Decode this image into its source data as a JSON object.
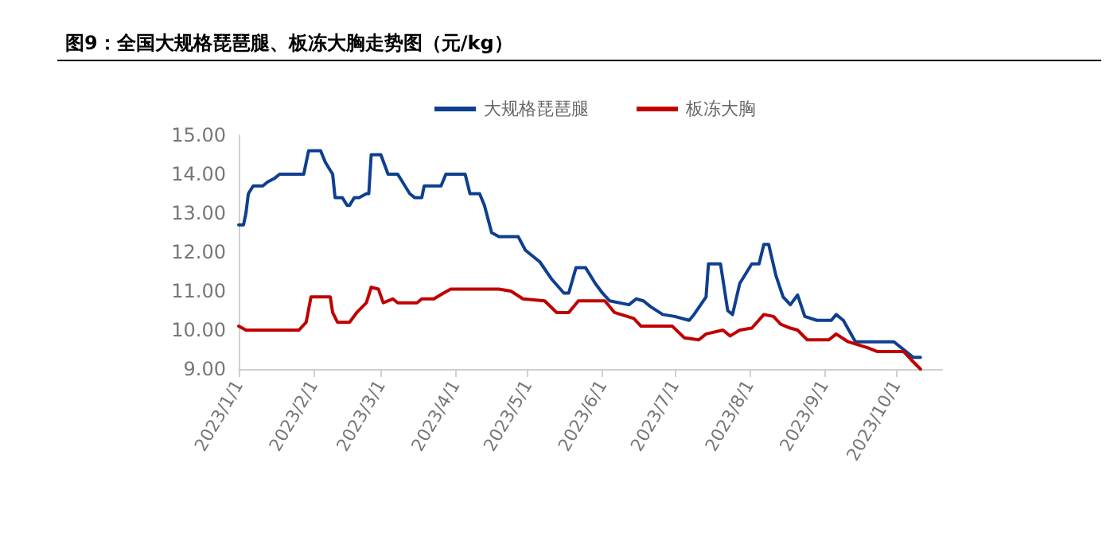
{
  "chart_data": {
    "type": "line",
    "title": "图9：全国大规格琵琶腿、板冻大胸走势图（元/kg）",
    "xlim": [
      "2023-01-01",
      "2023-10-20"
    ],
    "xticks": [
      {
        "value": "2023-01-01",
        "label": "2023/1/1"
      },
      {
        "value": "2023-02-01",
        "label": "2023/2/1"
      },
      {
        "value": "2023-03-01",
        "label": "2023/3/1"
      },
      {
        "value": "2023-04-01",
        "label": "2023/4/1"
      },
      {
        "value": "2023-05-01",
        "label": "2023/5/1"
      },
      {
        "value": "2023-06-01",
        "label": "2023/6/1"
      },
      {
        "value": "2023-07-01",
        "label": "2023/7/1"
      },
      {
        "value": "2023-08-01",
        "label": "2023/8/1"
      },
      {
        "value": "2023-09-01",
        "label": "2023/9/1"
      },
      {
        "value": "2023-10-01",
        "label": "2023/10/1"
      }
    ],
    "ylim": [
      9,
      15
    ],
    "yticks": [
      {
        "value": 9,
        "label": "9.00"
      },
      {
        "value": 10,
        "label": "10.00"
      },
      {
        "value": 11,
        "label": "11.00"
      },
      {
        "value": 12,
        "label": "12.00"
      },
      {
        "value": 13,
        "label": "13.00"
      },
      {
        "value": 14,
        "label": "14.00"
      },
      {
        "value": 15,
        "label": "15.00"
      }
    ],
    "grid": false,
    "legend": "top",
    "marker": "none",
    "line_style": "solid",
    "series": [
      {
        "name": "大规格琵琶腿",
        "color": "#0f3f8f",
        "x": [
          "2023-01-01",
          "2023-01-03",
          "2023-01-04",
          "2023-01-05",
          "2023-01-07",
          "2023-01-11",
          "2023-01-13",
          "2023-01-16",
          "2023-01-18",
          "2023-01-28",
          "2023-01-30",
          "2023-02-04",
          "2023-02-06",
          "2023-02-09",
          "2023-02-10",
          "2023-02-13",
          "2023-02-15",
          "2023-02-16",
          "2023-02-18",
          "2023-02-20",
          "2023-02-23",
          "2023-02-24",
          "2023-02-25",
          "2023-03-01",
          "2023-03-04",
          "2023-03-08",
          "2023-03-10",
          "2023-03-13",
          "2023-03-15",
          "2023-03-18",
          "2023-03-19",
          "2023-03-26",
          "2023-03-28",
          "2023-04-05",
          "2023-04-07",
          "2023-04-11",
          "2023-04-13",
          "2023-04-16",
          "2023-04-19",
          "2023-04-27",
          "2023-04-30",
          "2023-05-02",
          "2023-05-06",
          "2023-05-11",
          "2023-05-16",
          "2023-05-18",
          "2023-05-21",
          "2023-05-25",
          "2023-05-29",
          "2023-06-01",
          "2023-06-04",
          "2023-06-12",
          "2023-06-15",
          "2023-06-18",
          "2023-06-21",
          "2023-06-26",
          "2023-07-01",
          "2023-07-07",
          "2023-07-09",
          "2023-07-14",
          "2023-07-15",
          "2023-07-20",
          "2023-07-23",
          "2023-07-25",
          "2023-07-28",
          "2023-08-02",
          "2023-08-05",
          "2023-08-07",
          "2023-08-09",
          "2023-08-12",
          "2023-08-15",
          "2023-08-18",
          "2023-08-21",
          "2023-08-24",
          "2023-08-29",
          "2023-09-04",
          "2023-09-06",
          "2023-09-09",
          "2023-09-14",
          "2023-09-30",
          "2023-10-04",
          "2023-10-08",
          "2023-10-11"
        ],
        "values": [
          12.7,
          12.7,
          13.0,
          13.5,
          13.7,
          13.7,
          13.8,
          13.9,
          14.0,
          14.0,
          14.6,
          14.6,
          14.3,
          14.0,
          13.4,
          13.4,
          13.2,
          13.2,
          13.4,
          13.4,
          13.5,
          13.5,
          14.5,
          14.5,
          14.0,
          14.0,
          13.8,
          13.5,
          13.4,
          13.4,
          13.7,
          13.7,
          14.0,
          14.0,
          13.5,
          13.5,
          13.2,
          12.5,
          12.4,
          12.4,
          12.05,
          11.95,
          11.75,
          11.3,
          10.95,
          10.95,
          11.6,
          11.6,
          11.2,
          10.95,
          10.75,
          10.65,
          10.8,
          10.75,
          10.6,
          10.4,
          10.35,
          10.25,
          10.4,
          10.85,
          11.7,
          11.7,
          10.5,
          10.4,
          11.2,
          11.7,
          11.7,
          12.2,
          12.2,
          11.4,
          10.85,
          10.65,
          10.9,
          10.35,
          10.25,
          10.25,
          10.4,
          10.25,
          9.7,
          9.7,
          9.5,
          9.3,
          9.3
        ]
      },
      {
        "name": "板冻大胸",
        "color": "#c00000",
        "x": [
          "2023-01-01",
          "2023-01-04",
          "2023-01-26",
          "2023-01-29",
          "2023-01-31",
          "2023-02-08",
          "2023-02-09",
          "2023-02-11",
          "2023-02-16",
          "2023-02-19",
          "2023-02-23",
          "2023-02-25",
          "2023-02-28",
          "2023-03-02",
          "2023-03-06",
          "2023-03-08",
          "2023-03-16",
          "2023-03-18",
          "2023-03-23",
          "2023-03-27",
          "2023-03-30",
          "2023-04-19",
          "2023-04-24",
          "2023-04-29",
          "2023-05-08",
          "2023-05-13",
          "2023-05-18",
          "2023-05-22",
          "2023-06-02",
          "2023-06-06",
          "2023-06-14",
          "2023-06-17",
          "2023-06-30",
          "2023-07-05",
          "2023-07-11",
          "2023-07-14",
          "2023-07-21",
          "2023-07-24",
          "2023-07-28",
          "2023-08-02",
          "2023-08-07",
          "2023-08-11",
          "2023-08-14",
          "2023-08-18",
          "2023-08-21",
          "2023-08-25",
          "2023-09-03",
          "2023-09-06",
          "2023-09-11",
          "2023-09-19",
          "2023-09-23",
          "2023-10-04",
          "2023-10-07",
          "2023-10-11"
        ],
        "values": [
          10.1,
          10.0,
          10.0,
          10.2,
          10.85,
          10.85,
          10.45,
          10.2,
          10.2,
          10.45,
          10.7,
          11.1,
          11.05,
          10.7,
          10.8,
          10.7,
          10.7,
          10.8,
          10.8,
          10.95,
          11.05,
          11.05,
          11.0,
          10.8,
          10.75,
          10.45,
          10.45,
          10.75,
          10.75,
          10.45,
          10.3,
          10.1,
          10.1,
          9.8,
          9.75,
          9.9,
          10.0,
          9.85,
          10.0,
          10.05,
          10.4,
          10.35,
          10.15,
          10.05,
          10.0,
          9.75,
          9.75,
          9.9,
          9.7,
          9.55,
          9.45,
          9.45,
          9.25,
          9.0
        ]
      }
    ]
  }
}
